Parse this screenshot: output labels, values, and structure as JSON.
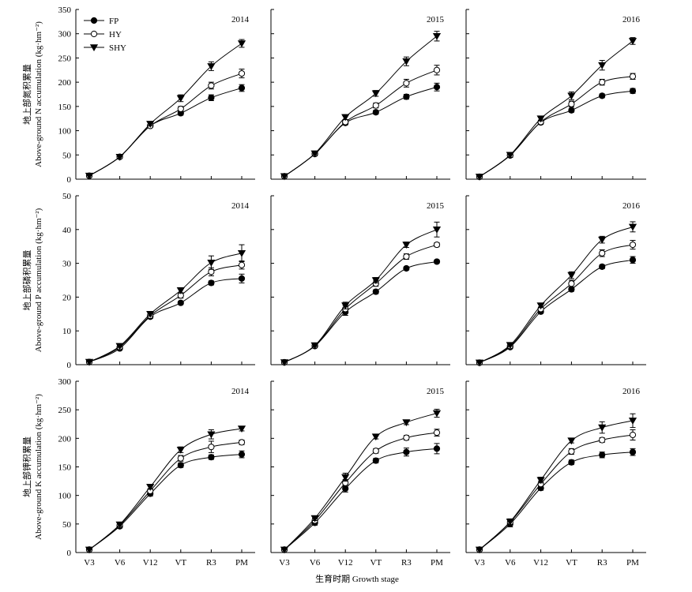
{
  "figure": {
    "xlabel": "生育时期 Growth stage",
    "legend": [
      {
        "name": "FP",
        "marker": "filled-circle"
      },
      {
        "name": "HY",
        "marker": "open-circle"
      },
      {
        "name": "SHY",
        "marker": "filled-triangle-down"
      }
    ],
    "legend_placement": "top-left of first panel"
  },
  "chart_data": [
    {
      "type": "line",
      "panel": "N-2014",
      "year_label": "2014",
      "ylabel_cn": "地上部氮积累量",
      "ylabel_en": "Above-ground N accumulation (kg·hm⁻²)",
      "ylim": [
        0,
        350
      ],
      "yticks": [
        0,
        50,
        100,
        150,
        200,
        250,
        300,
        350
      ],
      "show_ytick_labels": true,
      "show_xtick_labels": false,
      "show_legend": true,
      "categories": [
        "V3",
        "V6",
        "V12",
        "VT",
        "R3",
        "PM"
      ],
      "series": [
        {
          "name": "FP",
          "values": [
            7,
            46,
            110,
            136,
            168,
            188
          ],
          "errors": [
            0,
            0,
            3,
            4,
            6,
            7
          ]
        },
        {
          "name": "HY",
          "values": [
            7,
            46,
            110,
            145,
            193,
            218
          ],
          "errors": [
            0,
            0,
            3,
            5,
            7,
            9
          ]
        },
        {
          "name": "SHY",
          "values": [
            7,
            46,
            114,
            167,
            233,
            280
          ],
          "errors": [
            0,
            0,
            4,
            7,
            9,
            8
          ]
        }
      ]
    },
    {
      "type": "line",
      "panel": "N-2015",
      "year_label": "2015",
      "ylim": [
        0,
        350
      ],
      "yticks": [
        0,
        50,
        100,
        150,
        200,
        250,
        300,
        350
      ],
      "show_ytick_labels": false,
      "show_xtick_labels": false,
      "show_legend": false,
      "categories": [
        "V3",
        "V6",
        "V12",
        "VT",
        "R3",
        "PM"
      ],
      "series": [
        {
          "name": "FP",
          "values": [
            6,
            52,
            116,
            138,
            170,
            190
          ],
          "errors": [
            0,
            3,
            4,
            4,
            5,
            8
          ]
        },
        {
          "name": "HY",
          "values": [
            6,
            52,
            118,
            152,
            198,
            225
          ],
          "errors": [
            0,
            3,
            4,
            5,
            8,
            10
          ]
        },
        {
          "name": "SHY",
          "values": [
            6,
            53,
            128,
            177,
            243,
            295
          ],
          "errors": [
            0,
            3,
            5,
            6,
            9,
            10
          ]
        }
      ]
    },
    {
      "type": "line",
      "panel": "N-2016",
      "year_label": "2016",
      "ylim": [
        0,
        350
      ],
      "yticks": [
        0,
        50,
        100,
        150,
        200,
        250,
        300,
        350
      ],
      "show_ytick_labels": false,
      "show_xtick_labels": false,
      "show_legend": false,
      "categories": [
        "V3",
        "V6",
        "V12",
        "VT",
        "R3",
        "PM"
      ],
      "series": [
        {
          "name": "FP",
          "values": [
            5,
            49,
            117,
            142,
            172,
            182
          ],
          "errors": [
            0,
            4,
            4,
            4,
            4,
            5
          ]
        },
        {
          "name": "HY",
          "values": [
            5,
            49,
            118,
            155,
            200,
            212
          ],
          "errors": [
            0,
            4,
            4,
            6,
            6,
            6
          ]
        },
        {
          "name": "SHY",
          "values": [
            5,
            50,
            125,
            172,
            235,
            285
          ],
          "errors": [
            0,
            5,
            5,
            8,
            10,
            7
          ]
        }
      ]
    },
    {
      "type": "line",
      "panel": "P-2014",
      "year_label": "2014",
      "ylabel_cn": "地上部磷积累量",
      "ylabel_en": "Above-ground P accumulation (kg·hm⁻²)",
      "ylim": [
        0,
        50
      ],
      "yticks": [
        0,
        10,
        20,
        30,
        40,
        50
      ],
      "show_ytick_labels": true,
      "show_xtick_labels": false,
      "show_legend": false,
      "categories": [
        "V3",
        "V6",
        "V12",
        "VT",
        "R3",
        "PM"
      ],
      "series": [
        {
          "name": "FP",
          "values": [
            0.8,
            4.8,
            14.2,
            18.3,
            24.2,
            25.5
          ],
          "errors": [
            0,
            0.3,
            0.5,
            0.5,
            0.6,
            1.3
          ]
        },
        {
          "name": "HY",
          "values": [
            0.8,
            5.2,
            14.5,
            20.5,
            27.5,
            29.5
          ],
          "errors": [
            0,
            0.3,
            0.6,
            0.8,
            1.2,
            1.2
          ]
        },
        {
          "name": "SHY",
          "values": [
            0.8,
            5.5,
            15.0,
            22.0,
            30.2,
            33.0
          ],
          "errors": [
            0,
            0.3,
            0.6,
            0.8,
            2.0,
            2.5
          ]
        }
      ]
    },
    {
      "type": "line",
      "panel": "P-2015",
      "year_label": "2015",
      "ylim": [
        0,
        50
      ],
      "yticks": [
        0,
        10,
        20,
        30,
        40,
        50
      ],
      "show_ytick_labels": false,
      "show_xtick_labels": false,
      "show_legend": false,
      "categories": [
        "V3",
        "V6",
        "V12",
        "VT",
        "R3",
        "PM"
      ],
      "series": [
        {
          "name": "FP",
          "values": [
            0.7,
            5.5,
            15.6,
            21.6,
            28.5,
            30.5
          ],
          "errors": [
            0,
            0.3,
            1.0,
            0.6,
            0.5,
            0.5
          ]
        },
        {
          "name": "HY",
          "values": [
            0.7,
            5.6,
            16.5,
            24.0,
            32.0,
            35.5
          ],
          "errors": [
            0,
            0.3,
            1.0,
            0.8,
            0.8,
            0.6
          ]
        },
        {
          "name": "SHY",
          "values": [
            0.7,
            5.7,
            17.5,
            25.0,
            35.5,
            40.0
          ],
          "errors": [
            0,
            0.3,
            1.0,
            0.8,
            0.8,
            2.2
          ]
        }
      ]
    },
    {
      "type": "line",
      "panel": "P-2016",
      "year_label": "2016",
      "ylim": [
        0,
        50
      ],
      "yticks": [
        0,
        10,
        20,
        30,
        40,
        50
      ],
      "show_ytick_labels": false,
      "show_xtick_labels": false,
      "show_legend": false,
      "categories": [
        "V3",
        "V6",
        "V12",
        "VT",
        "R3",
        "PM"
      ],
      "series": [
        {
          "name": "FP",
          "values": [
            0.6,
            5.2,
            15.7,
            22.3,
            29.0,
            31.0
          ],
          "errors": [
            0,
            0.3,
            0.5,
            0.6,
            0.6,
            1.0
          ]
        },
        {
          "name": "HY",
          "values": [
            0.6,
            5.5,
            16.5,
            24.0,
            33.0,
            35.5
          ],
          "errors": [
            0,
            0.3,
            0.6,
            1.0,
            1.0,
            1.3
          ]
        },
        {
          "name": "SHY",
          "values": [
            0.6,
            5.8,
            17.5,
            26.5,
            37.0,
            40.8
          ],
          "errors": [
            0,
            0.3,
            0.6,
            1.0,
            1.0,
            1.5
          ]
        }
      ]
    },
    {
      "type": "line",
      "panel": "K-2014",
      "year_label": "2014",
      "ylabel_cn": "地上部钾积累量",
      "ylabel_en": "Above-ground K accumulation (kg·hm⁻²)",
      "ylim": [
        0,
        300
      ],
      "yticks": [
        0,
        50,
        100,
        150,
        200,
        250,
        300
      ],
      "show_ytick_labels": true,
      "show_xtick_labels": true,
      "show_legend": false,
      "categories": [
        "V3",
        "V6",
        "V12",
        "VT",
        "R3",
        "PM"
      ],
      "series": [
        {
          "name": "FP",
          "values": [
            5,
            46,
            103,
            153,
            167,
            172
          ],
          "errors": [
            0,
            3,
            4,
            4,
            4,
            6
          ]
        },
        {
          "name": "HY",
          "values": [
            5,
            48,
            108,
            165,
            185,
            193
          ],
          "errors": [
            0,
            3,
            4,
            5,
            10,
            4
          ]
        },
        {
          "name": "SHY",
          "values": [
            5,
            49,
            115,
            180,
            207,
            217
          ],
          "errors": [
            0,
            3,
            4,
            5,
            8,
            4
          ]
        }
      ]
    },
    {
      "type": "line",
      "panel": "K-2015",
      "year_label": "2015",
      "ylim": [
        0,
        300
      ],
      "yticks": [
        0,
        50,
        100,
        150,
        200,
        250,
        300
      ],
      "show_ytick_labels": false,
      "show_xtick_labels": true,
      "show_legend": false,
      "categories": [
        "V3",
        "V6",
        "V12",
        "VT",
        "R3",
        "PM"
      ],
      "series": [
        {
          "name": "FP",
          "values": [
            5,
            52,
            112,
            161,
            176,
            182
          ],
          "errors": [
            0,
            4,
            6,
            4,
            7,
            9
          ]
        },
        {
          "name": "HY",
          "values": [
            5,
            56,
            122,
            178,
            201,
            210
          ],
          "errors": [
            0,
            4,
            6,
            4,
            4,
            6
          ]
        },
        {
          "name": "SHY",
          "values": [
            5,
            60,
            132,
            203,
            228,
            244
          ],
          "errors": [
            0,
            4,
            7,
            4,
            4,
            7
          ]
        }
      ]
    },
    {
      "type": "line",
      "panel": "K-2016",
      "year_label": "2016",
      "ylim": [
        0,
        300
      ],
      "yticks": [
        0,
        50,
        100,
        150,
        200,
        250,
        300
      ],
      "show_ytick_labels": false,
      "show_xtick_labels": true,
      "show_legend": false,
      "categories": [
        "V3",
        "V6",
        "V12",
        "VT",
        "R3",
        "PM"
      ],
      "series": [
        {
          "name": "FP",
          "values": [
            5,
            50,
            113,
            158,
            171,
            176
          ],
          "errors": [
            0,
            5,
            4,
            4,
            5,
            6
          ]
        },
        {
          "name": "HY",
          "values": [
            5,
            53,
            120,
            177,
            197,
            206
          ],
          "errors": [
            0,
            5,
            5,
            5,
            4,
            9
          ]
        },
        {
          "name": "SHY",
          "values": [
            5,
            54,
            127,
            196,
            219,
            231
          ],
          "errors": [
            0,
            5,
            5,
            4,
            10,
            12
          ]
        }
      ]
    }
  ]
}
